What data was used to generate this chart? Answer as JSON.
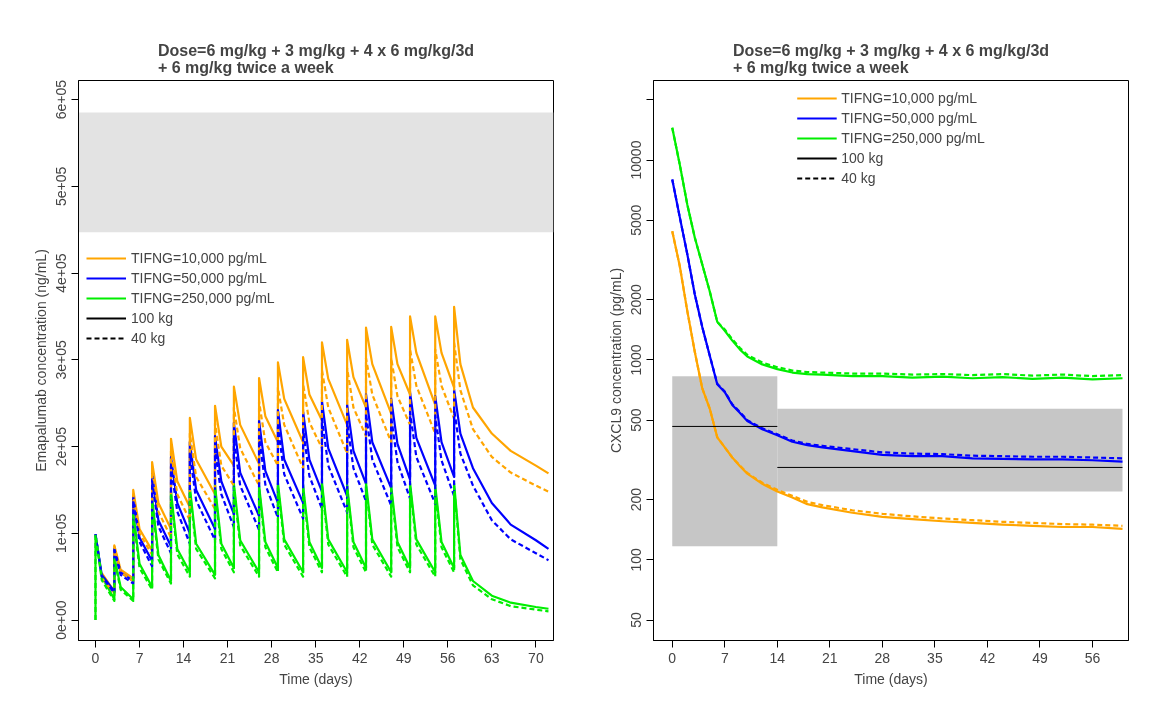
{
  "chart_data": [
    {
      "type": "line",
      "title": "Dose=6 mg/kg + 3 mg/kg + 4 x 6 mg/kg/3d\n+ 6 mg/kg twice a week",
      "xlabel": "Time (days)",
      "ylabel": "Emapalumab concentration (ng/mL)",
      "x": [
        0,
        0,
        1,
        3,
        3,
        4,
        6,
        6,
        7,
        9,
        9,
        10,
        12,
        12,
        13,
        15,
        15,
        16,
        19,
        19,
        20,
        22,
        22,
        23,
        26,
        26,
        27,
        29,
        29,
        30,
        33,
        33,
        34,
        36,
        36,
        37,
        40,
        40,
        41,
        43,
        43,
        44,
        47,
        47,
        48,
        50,
        50,
        51,
        54,
        54,
        55,
        57,
        57,
        58,
        60,
        63,
        66,
        70,
        72
      ],
      "xlim": [
        -2.7,
        72.8
      ],
      "xticks": [
        0,
        7,
        14,
        21,
        28,
        35,
        42,
        49,
        56,
        63,
        70
      ],
      "ylim": [
        -23600,
        622000
      ],
      "yticks": [
        {
          "value": 0,
          "label": "0e+00"
        },
        {
          "value": 100000,
          "label": "1e+05"
        },
        {
          "value": 200000,
          "label": "2e+05"
        },
        {
          "value": 300000,
          "label": "3e+05"
        },
        {
          "value": 400000,
          "label": "4e+05"
        },
        {
          "value": 500000,
          "label": "5e+05"
        },
        {
          "value": 600000,
          "label": "6e+05"
        }
      ],
      "bands": [
        {
          "axis": "y",
          "from": 447000,
          "to": 585000,
          "color": "#e3e3e3"
        }
      ],
      "grid": false,
      "legend": "top left",
      "marker": "none",
      "annotations": [
        "100 kg",
        "40 kg"
      ],
      "series": [
        {
          "name": "TIFNG=10,000 pg/mL",
          "color": "#ffa500",
          "line_style": "solid",
          "values": [
            null,
            null,
            54000,
            33000,
            86000,
            58000,
            48000,
            150000,
            105000,
            80000,
            182000,
            135000,
            105000,
            209000,
            160000,
            130000,
            233000,
            185000,
            145000,
            247000,
            200000,
            178000,
            269000,
            225000,
            180000,
            279000,
            235000,
            205000,
            297000,
            255000,
            205000,
            303000,
            260000,
            230000,
            320000,
            278000,
            225000,
            323000,
            280000,
            245000,
            337000,
            295000,
            238000,
            338000,
            295000,
            260000,
            350000,
            308000,
            248000,
            350000,
            308000,
            268000,
            361000,
            295000,
            245000,
            215000,
            195000,
            178000,
            169000
          ]
        },
        {
          "name": "TIFNG=50,000 pg/mL",
          "color": "#0000ff",
          "line_style": "solid",
          "values": [
            null,
            99000,
            52000,
            33000,
            82000,
            55000,
            45000,
            142000,
            95000,
            68000,
            168000,
            115000,
            85000,
            188000,
            135000,
            100000,
            205000,
            150000,
            105000,
            212000,
            160000,
            122000,
            227000,
            170000,
            120000,
            230000,
            172000,
            135000,
            242000,
            185000,
            135000,
            240000,
            185000,
            148000,
            252000,
            198000,
            143000,
            248000,
            195000,
            157000,
            260000,
            205000,
            152000,
            255000,
            203000,
            162000,
            262000,
            210000,
            155000,
            258000,
            205000,
            165000,
            266000,
            215000,
            175000,
            135000,
            110000,
            92000,
            82000
          ]
        },
        {
          "name": "TIFNG=250,000 pg/mL",
          "color": "#00ee00",
          "line_style": "solid",
          "values": [
            0,
            98000,
            50000,
            24000,
            72000,
            38000,
            24000,
            124000,
            65000,
            38000,
            140000,
            75000,
            45000,
            148000,
            82000,
            55000,
            153000,
            88000,
            52000,
            155000,
            88000,
            60000,
            157000,
            92000,
            55000,
            155000,
            90000,
            60000,
            158000,
            93000,
            55000,
            155000,
            90000,
            60000,
            158000,
            93000,
            55000,
            155000,
            90000,
            60000,
            158000,
            93000,
            55000,
            155000,
            90000,
            60000,
            158000,
            93000,
            55000,
            155000,
            90000,
            60000,
            158000,
            75000,
            45000,
            28000,
            20000,
            15000,
            13000
          ]
        },
        {
          "color": "#ffa500",
          "line_style": "dashed",
          "values": [
            null,
            null,
            48000,
            31000,
            85000,
            55000,
            45000,
            145000,
            100000,
            75000,
            172000,
            125000,
            95000,
            195000,
            145000,
            115000,
            215000,
            165000,
            128000,
            227000,
            178000,
            155000,
            245000,
            198000,
            155000,
            252000,
            205000,
            178000,
            268000,
            225000,
            175000,
            272000,
            228000,
            198000,
            288000,
            245000,
            192000,
            290000,
            245000,
            212000,
            302000,
            260000,
            205000,
            302000,
            258000,
            225000,
            312000,
            270000,
            215000,
            312000,
            270000,
            232000,
            320000,
            265000,
            220000,
            188000,
            170000,
            155000,
            148000
          ]
        },
        {
          "color": "#0000ff",
          "line_style": "dashed",
          "values": [
            null,
            99000,
            50000,
            31000,
            80000,
            52000,
            42000,
            138000,
            90000,
            62000,
            160000,
            108000,
            77000,
            177000,
            125000,
            88000,
            192000,
            138000,
            92000,
            197000,
            145000,
            107000,
            210000,
            155000,
            104000,
            212000,
            156000,
            118000,
            223000,
            168000,
            117000,
            220000,
            166000,
            128000,
            232000,
            178000,
            124000,
            228000,
            175000,
            137000,
            238000,
            185000,
            132000,
            234000,
            182000,
            140000,
            240000,
            188000,
            134000,
            236000,
            184000,
            143000,
            244000,
            192000,
            155000,
            115000,
            93000,
            77000,
            69000
          ]
        },
        {
          "color": "#00ee00",
          "line_style": "dashed",
          "values": [
            0,
            98000,
            46000,
            22000,
            70000,
            35000,
            22000,
            120000,
            60000,
            35000,
            136000,
            70000,
            42000,
            144000,
            76000,
            50000,
            149000,
            82000,
            48000,
            151000,
            82000,
            55000,
            153000,
            86000,
            50000,
            151000,
            84000,
            55000,
            154000,
            87000,
            50000,
            151000,
            84000,
            55000,
            154000,
            87000,
            50000,
            151000,
            84000,
            55000,
            154000,
            87000,
            50000,
            151000,
            84000,
            55000,
            154000,
            87000,
            50000,
            151000,
            84000,
            55000,
            154000,
            70000,
            40000,
            24000,
            16000,
            12000,
            10000
          ]
        }
      ]
    },
    {
      "type": "line",
      "title": "Dose=6 mg/kg + 3 mg/kg + 4 x 6 mg/kg/3d\n+ 6 mg/kg twice a week",
      "xlabel": "Time (days)",
      "ylabel": "CXCL9 concentration (pg/mL)",
      "log": "y",
      "x": [
        0,
        1,
        2,
        3,
        4,
        5,
        6,
        7,
        8,
        9,
        10,
        12,
        14,
        16,
        18,
        20,
        24,
        28,
        32,
        36,
        40,
        44,
        48,
        52,
        56,
        60
      ],
      "xlim": [
        -2.5,
        60.8
      ],
      "xticks": [
        0,
        7,
        14,
        21,
        28,
        35,
        42,
        49,
        56
      ],
      "ylim": [
        39.5,
        25000
      ],
      "yticks": [
        50,
        100,
        200,
        500,
        1000,
        2000,
        5000,
        10000,
        {
          "value": 20000,
          "label": null
        }
      ],
      "grid": false,
      "legend": "top",
      "marker": "none",
      "annotations": [
        "100 kg",
        "40 kg"
      ],
      "series": [
        {
          "name": "TIFNG=10,000 pg/mL",
          "color": "#ffa500",
          "line_style": "solid",
          "values": [
            4400,
            2950,
            1760,
            1100,
            720,
            570,
            410,
            365,
            325,
            295,
            270,
            240,
            220,
            205,
            190,
            183,
            172,
            164,
            160,
            156,
            153,
            150,
            148,
            146,
            146,
            143
          ]
        },
        {
          "name": "TIFNG=50,000 pg/mL",
          "color": "#0000ff",
          "line_style": "solid",
          "values": [
            8000,
            5180,
            3390,
            2130,
            1460,
            1050,
            755,
            690,
            595,
            545,
            495,
            450,
            420,
            390,
            375,
            365,
            350,
            335,
            330,
            330,
            322,
            320,
            318,
            318,
            315,
            310
          ]
        },
        {
          "name": "TIFNG=250,000 pg/mL",
          "color": "#00ee00",
          "line_style": "solid",
          "values": [
            14500,
            9500,
            6000,
            4100,
            3000,
            2200,
            1550,
            1400,
            1250,
            1130,
            1040,
            950,
            900,
            865,
            850,
            845,
            830,
            830,
            815,
            825,
            810,
            820,
            805,
            815,
            800,
            810
          ]
        },
        {
          "color": "#ffa500",
          "line_style": "dashed",
          "values": [
            4400,
            2950,
            1760,
            1100,
            720,
            570,
            410,
            365,
            325,
            297,
            272,
            243,
            224,
            209,
            195,
            188,
            177,
            170,
            165,
            161,
            158,
            155,
            153,
            151,
            150,
            148
          ]
        },
        {
          "color": "#0000ff",
          "line_style": "dashed",
          "values": [
            8000,
            5180,
            3390,
            2130,
            1460,
            1050,
            760,
            695,
            600,
            550,
            500,
            455,
            425,
            395,
            380,
            372,
            358,
            345,
            340,
            338,
            332,
            330,
            328,
            328,
            325,
            322
          ]
        },
        {
          "color": "#00ee00",
          "line_style": "dashed",
          "values": [
            14500,
            9500,
            6000,
            4100,
            3000,
            2200,
            1550,
            1420,
            1270,
            1150,
            1060,
            970,
            920,
            885,
            870,
            865,
            855,
            855,
            845,
            850,
            840,
            850,
            835,
            845,
            830,
            840
          ]
        },
        {
          "type": "line",
          "color": "#000000",
          "line_style": "solid",
          "x": [
            0,
            14
          ],
          "values": [
            465,
            465
          ],
          "lower": [
            117,
            117
          ],
          "upper": [
            828,
            828
          ]
        },
        {
          "type": "line",
          "color": "#000000",
          "line_style": "solid",
          "x": [
            14,
            60
          ],
          "values": [
            290,
            290
          ],
          "lower": [
            220,
            220
          ],
          "upper": [
            570,
            570
          ]
        }
      ]
    }
  ]
}
